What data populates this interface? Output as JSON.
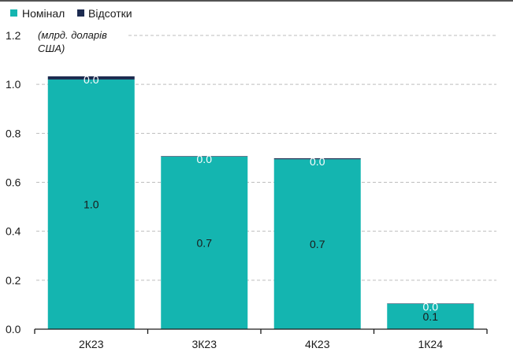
{
  "chart_data": {
    "type": "bar",
    "stacked": true,
    "unit_note": "(млрд. доларів США)",
    "unit_note_lines": [
      "(млрд. доларів",
      "США)"
    ],
    "categories": [
      "2К23",
      "3К23",
      "4К23",
      "1К24"
    ],
    "series": [
      {
        "name": "Номінал",
        "color": "#14b5b0",
        "values": [
          1.02,
          0.705,
          0.694,
          0.104
        ],
        "labels": [
          "1.0",
          "0.7",
          "0.7",
          "0.1"
        ],
        "label_color": "#1a1a1a"
      },
      {
        "name": "Відсотки",
        "color": "#1c2b50",
        "values": [
          0.013,
          0.002,
          0.004,
          0.001
        ],
        "labels": [
          "0.0",
          "0.0",
          "0.0",
          "0.0"
        ],
        "label_color": "#ffffff"
      }
    ],
    "yticks": [
      "0.0",
      "0.2",
      "0.4",
      "0.6",
      "0.8",
      "1.0",
      "1.2"
    ],
    "ylim": [
      0,
      1.2
    ],
    "grid": true,
    "legend_position": "top-left"
  }
}
